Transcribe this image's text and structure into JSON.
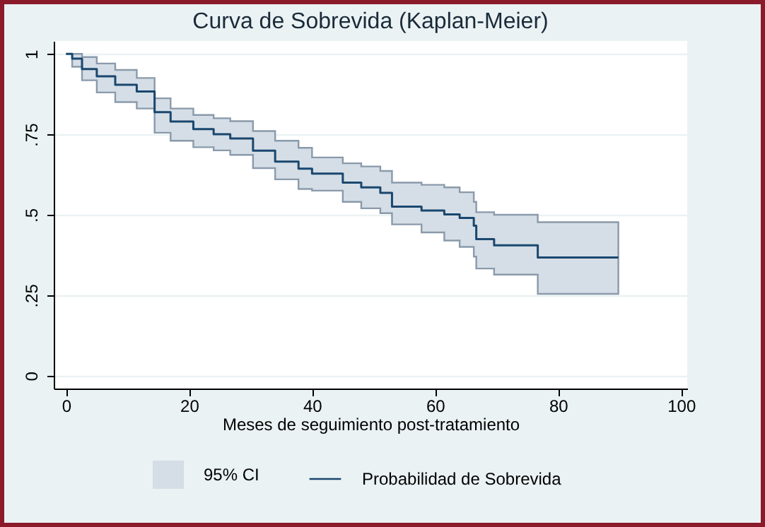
{
  "chart_data": {
    "type": "step",
    "title": "Curva de Sobrevida (Kaplan-Meier)",
    "xlabel": "Meses de seguimiento post-tratamiento",
    "x": [
      0,
      1,
      2.6,
      5,
      8,
      11.5,
      14.4,
      17,
      20.7,
      24,
      26.7,
      30.4,
      34,
      37.8,
      40,
      45,
      48,
      51.1,
      53,
      57.8,
      61.5,
      64,
      66.3,
      66.7,
      69.6,
      76.7,
      89.8
    ],
    "series": [
      {
        "name": "Probabilidad de Sobrevida",
        "color": "#1a476f",
        "values": [
          1,
          0.985,
          0.953,
          0.93,
          0.904,
          0.883,
          0.819,
          0.79,
          0.766,
          0.75,
          0.737,
          0.699,
          0.665,
          0.643,
          0.628,
          0.6,
          0.585,
          0.568,
          0.525,
          0.513,
          0.501,
          0.49,
          0.466,
          0.424,
          0.405,
          0.367,
          0.367
        ],
        "upper": [
          1,
          1,
          0.99,
          0.97,
          0.95,
          0.925,
          0.862,
          0.83,
          0.81,
          0.8,
          0.791,
          0.76,
          0.73,
          0.708,
          0.678,
          0.66,
          0.65,
          0.636,
          0.6,
          0.593,
          0.585,
          0.57,
          0.54,
          0.508,
          0.5,
          0.477,
          0.477
        ],
        "lower": [
          1,
          0.96,
          0.918,
          0.88,
          0.85,
          0.83,
          0.755,
          0.73,
          0.71,
          0.7,
          0.686,
          0.645,
          0.61,
          0.58,
          0.575,
          0.54,
          0.52,
          0.505,
          0.47,
          0.445,
          0.42,
          0.4,
          0.37,
          0.333,
          0.314,
          0.254,
          0.254
        ]
      }
    ],
    "annotations": [
      "95% CI"
    ],
    "xlim": [
      -2,
      101
    ],
    "xticks": [
      0,
      20,
      40,
      60,
      80,
      100
    ],
    "ylim": [
      -0.04,
      1.04
    ],
    "yticks": [
      {
        "value": 0,
        "label": "0"
      },
      {
        "value": 0.25,
        "label": ".25"
      },
      {
        "value": 0.5,
        "label": ".5"
      },
      {
        "value": 0.75,
        "label": ".75"
      },
      {
        "value": 1,
        "label": "1"
      }
    ],
    "grid": "y",
    "legend": "bottom",
    "line_style": "solid"
  }
}
